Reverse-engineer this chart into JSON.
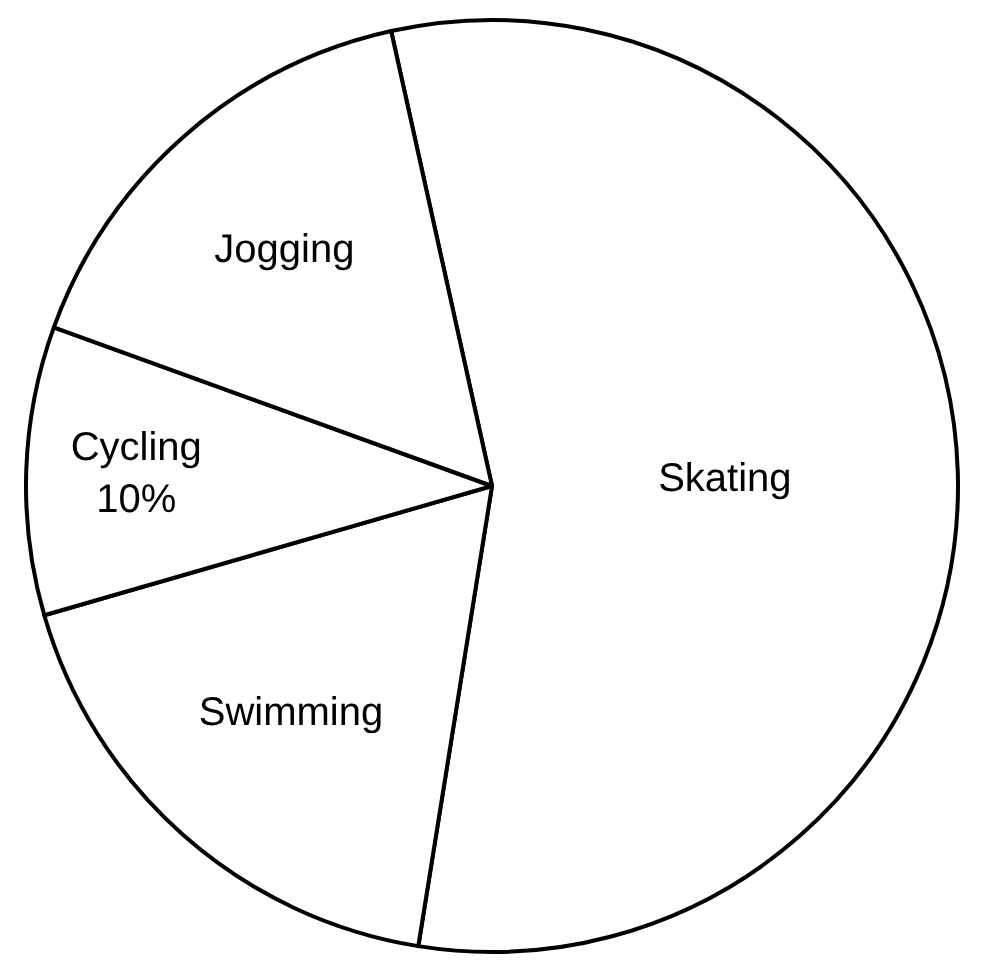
{
  "chart_data": {
    "type": "pie",
    "categories": [
      "Skating",
      "Swimming",
      "Cycling",
      "Jogging"
    ],
    "values": [
      56,
      18,
      10,
      16
    ],
    "value_labels": [
      null,
      null,
      "10%",
      null
    ],
    "colors": [
      "#ffffff",
      "#ffffff",
      "#ffffff",
      "#ffffff"
    ],
    "legend": false
  }
}
